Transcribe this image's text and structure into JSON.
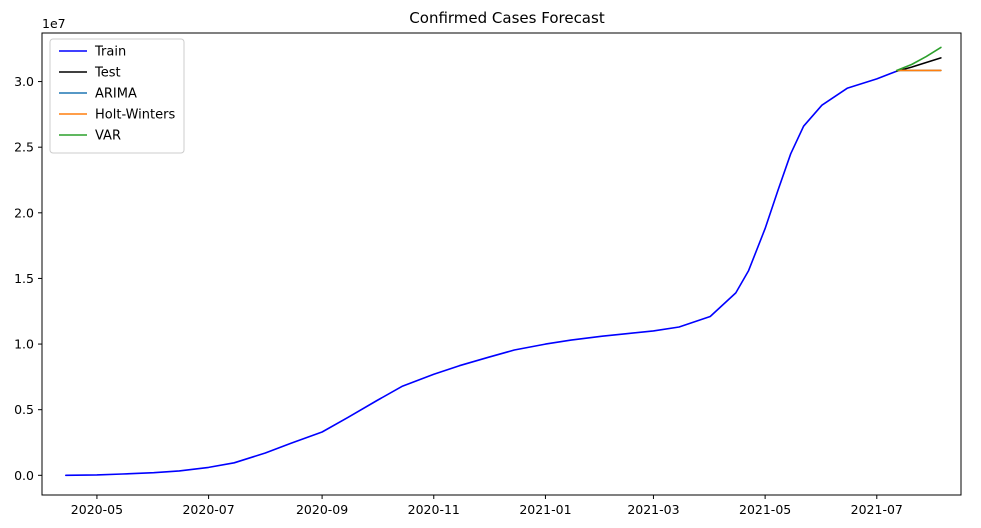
{
  "chart_data": {
    "type": "line",
    "title": "Confirmed Cases Forecast",
    "xlabel": "",
    "ylabel": "",
    "y_scale_label": "1e7",
    "x_ticks": [
      "2020-05",
      "2020-07",
      "2020-09",
      "2020-11",
      "2021-01",
      "2021-03",
      "2021-05",
      "2021-07"
    ],
    "y_ticks": [
      "0.0",
      "0.5",
      "1.0",
      "1.5",
      "2.0",
      "2.5",
      "3.0"
    ],
    "ylim": [
      -1500000,
      33700000
    ],
    "xlim": [
      "2020-04-01",
      "2021-08-16"
    ],
    "grid": false,
    "legend_position": "upper-left",
    "series": [
      {
        "name": "Train",
        "color": "#0000ff",
        "points": [
          [
            "2020-04-14",
            0
          ],
          [
            "2020-05-01",
            35000
          ],
          [
            "2020-05-15",
            100000
          ],
          [
            "2020-06-01",
            200000
          ],
          [
            "2020-06-15",
            340000
          ],
          [
            "2020-07-01",
            600000
          ],
          [
            "2020-07-15",
            950000
          ],
          [
            "2020-08-01",
            1700000
          ],
          [
            "2020-08-15",
            2450000
          ],
          [
            "2020-09-01",
            3300000
          ],
          [
            "2020-09-15",
            4400000
          ],
          [
            "2020-10-01",
            5700000
          ],
          [
            "2020-10-15",
            6800000
          ],
          [
            "2020-11-01",
            7700000
          ],
          [
            "2020-11-15",
            8350000
          ],
          [
            "2020-12-01",
            9000000
          ],
          [
            "2020-12-15",
            9550000
          ],
          [
            "2021-01-01",
            10000000
          ],
          [
            "2021-01-15",
            10300000
          ],
          [
            "2021-02-01",
            10600000
          ],
          [
            "2021-02-15",
            10800000
          ],
          [
            "2021-03-01",
            11000000
          ],
          [
            "2021-03-15",
            11300000
          ],
          [
            "2021-04-01",
            12100000
          ],
          [
            "2021-04-15",
            13900000
          ],
          [
            "2021-04-22",
            15600000
          ],
          [
            "2021-05-01",
            18800000
          ],
          [
            "2021-05-08",
            21700000
          ],
          [
            "2021-05-15",
            24500000
          ],
          [
            "2021-05-22",
            26600000
          ],
          [
            "2021-06-01",
            28200000
          ],
          [
            "2021-06-15",
            29500000
          ],
          [
            "2021-07-01",
            30200000
          ],
          [
            "2021-07-12",
            30800000
          ]
        ]
      },
      {
        "name": "Test",
        "color": "#000000",
        "points": [
          [
            "2021-07-12",
            30800000
          ],
          [
            "2021-07-20",
            31100000
          ],
          [
            "2021-07-28",
            31450000
          ],
          [
            "2021-08-05",
            31800000
          ]
        ]
      },
      {
        "name": "ARIMA",
        "color": "#1f77b4",
        "points": [
          [
            "2021-07-12",
            30850000
          ],
          [
            "2021-08-05",
            30850000
          ]
        ]
      },
      {
        "name": "Holt-Winters",
        "color": "#ff7f0e",
        "points": [
          [
            "2021-07-12",
            30850000
          ],
          [
            "2021-08-05",
            30850000
          ]
        ]
      },
      {
        "name": "VAR",
        "color": "#2ca02c",
        "points": [
          [
            "2021-07-12",
            30850000
          ],
          [
            "2021-07-20",
            31300000
          ],
          [
            "2021-07-28",
            31900000
          ],
          [
            "2021-08-05",
            32600000
          ]
        ]
      }
    ]
  }
}
